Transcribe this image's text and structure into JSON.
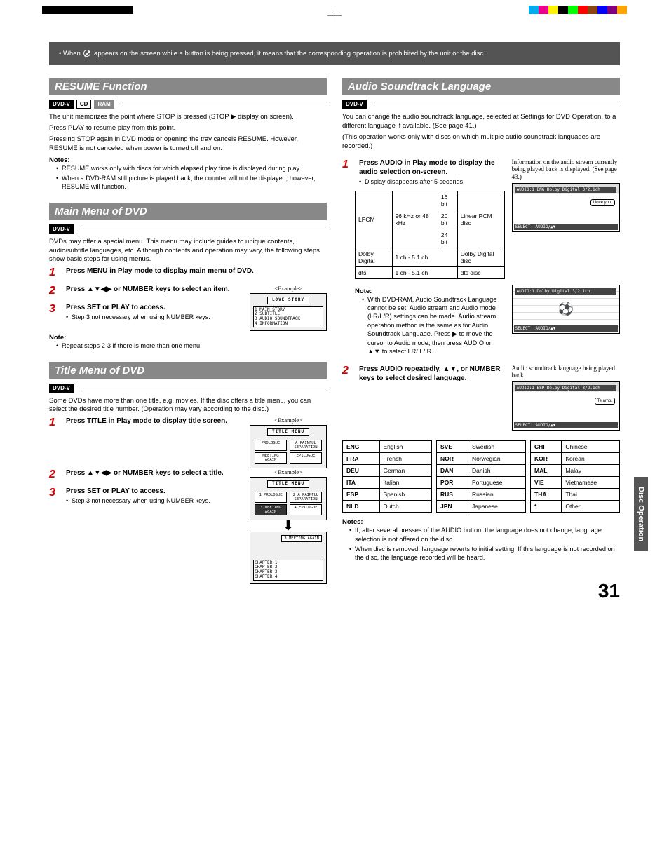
{
  "reg_colors": [
    "#00aeef",
    "#ec008c",
    "#fff200",
    "#000000",
    "#00ff00",
    "#ff0000",
    "#8b4513",
    "#0000ff",
    "#800080",
    "#ffa500"
  ],
  "info_box": {
    "text_before": "• When ",
    "text_after": " appears on the screen while a button is being pressed, it means that the corresponding operation is prohibited by the unit or the disc."
  },
  "resume": {
    "header": "RESUME Function",
    "badges": [
      "DVD-V",
      "CD",
      "RAM"
    ],
    "p1": "The unit memorizes the point where STOP is pressed (STOP ▶ display on screen).",
    "p2": "Press PLAY to resume play from this point.",
    "p3": "Pressing STOP again in DVD mode or opening the tray cancels RESUME. However, RESUME is not canceled when power is turned off and on.",
    "notes_h": "Notes:",
    "notes": [
      "RESUME works only with discs for which elapsed play time is displayed during play.",
      "When a DVD-RAM still picture is played back, the counter will not be displayed; however, RESUME will function."
    ]
  },
  "mainmenu": {
    "header": "Main Menu of DVD",
    "badge": "DVD-V",
    "p1": "DVDs may offer a special menu. This menu may include guides to unique contents, audio/subtitle languages, etc. Although contents and operation may vary, the following steps show basic steps for using menus.",
    "step1": "Press MENU in Play mode to display main menu of DVD.",
    "step2": "Press ▲▼◀▶ or NUMBER keys to select an item.",
    "step3": "Press SET or PLAY to access.",
    "step3_sub": "Step 3 not necessary when using NUMBER keys.",
    "example_label": "<Example>",
    "illus_title": "LOVE STORY",
    "illus_items": [
      "1 MAIN STORY",
      "2 SUBTITLE",
      "3 AUDIO SOUNDTRACK",
      "4 INFORMATION"
    ],
    "note_h": "Note:",
    "note1": "Repeat steps 2-3 if there is more than one menu."
  },
  "titlemenu": {
    "header": "Title Menu of DVD",
    "badge": "DVD-V",
    "p1": "Some DVDs have more than one title, e.g. movies. If the disc offers a title menu, you can select the desired title number. (Operation may vary according to the disc.)",
    "step1": "Press TITLE in Play mode to display title screen.",
    "step2": "Press ▲▼◀▶ or NUMBER keys to select a title.",
    "step3": "Press SET or PLAY to access.",
    "step3_sub": "Step 3 not necessary when using NUMBER keys.",
    "example_label": "<Example>",
    "illus_title": "TITLE MENU",
    "illus_boxes1": [
      "PROLOGUE",
      "A PAINFUL SEPARATION",
      "MEETING AGAIN",
      "EPILOGUE"
    ],
    "illus_boxes2": [
      "1 PROLOGUE",
      "2 A PAINFUL SEPARATION",
      "3 MEETING AGAIN",
      "4 EPILOGUE"
    ],
    "illus3_title": "3 MEETING AGAIN",
    "illus3_items": [
      "CHAPTER 1",
      "CHAPTER 2",
      "CHAPTER 3",
      "CHAPTER 4"
    ]
  },
  "audio": {
    "header": "Audio Soundtrack Language",
    "badge": "DVD-V",
    "p1": "You can change the audio soundtrack language, selected at Settings for DVD Operation, to a different language if available. (See page 41.)",
    "p2": "(This operation works only with discs on which multiple audio soundtrack languages are recorded.)",
    "step1": "Press AUDIO in Play mode to display the audio selection on-screen.",
    "step1_sub": "Display disappears after 5 seconds.",
    "caption1": "Information on the audio stream currently being played back is displayed. (See page 43.)",
    "table1": {
      "r1c1": "LPCM",
      "r1c2": "96 kHz or 48 kHz",
      "r1c3a": "16 bit",
      "r1c3b": "20 bit",
      "r1c3c": "24 bit",
      "r1c4": "Linear PCM disc",
      "r2c1": "Dolby Digital",
      "r2c2": "1 ch - 5.1 ch",
      "r2c3": "Dolby Digital disc",
      "r3c1": "dts",
      "r3c2": "1 ch - 5.1 ch",
      "r3c3": "dts disc"
    },
    "note_h": "Note:",
    "note1": "With DVD-RAM, Audio Soundtrack Language cannot be set. Audio stream and Audio mode (LR/L/R) settings can be made. Audio stream operation method is the same as for Audio Soundtrack Language. Press ▶ to move the cursor to Audio mode, then press AUDIO or ▲▼ to select LR/ L/ R.",
    "step2": "Press AUDIO repeatedly, ▲▼, or NUMBER keys to select desired language.",
    "caption2": "Audio soundtrack language being played back.",
    "osd1": "AUDIO:1 ENG   Dolby Digital 3/2.1ch",
    "osd_bubble1": "I love you.",
    "osd_sel": "SELECT  :AUDIO/▲▼",
    "osd2": "AUDIO:1   Dolby Digital 3/2.1ch",
    "osd3": "AUDIO:1 ESP   Dolby Digital 3/2.1ch",
    "osd_bubble3": "Te amo.",
    "lang": [
      [
        [
          "ENG",
          "English"
        ],
        [
          "FRA",
          "French"
        ],
        [
          "DEU",
          "German"
        ],
        [
          "ITA",
          "Italian"
        ],
        [
          "ESP",
          "Spanish"
        ],
        [
          "NLD",
          "Dutch"
        ]
      ],
      [
        [
          "SVE",
          "Swedish"
        ],
        [
          "NOR",
          "Norwegian"
        ],
        [
          "DAN",
          "Danish"
        ],
        [
          "POR",
          "Portuguese"
        ],
        [
          "RUS",
          "Russian"
        ],
        [
          "JPN",
          "Japanese"
        ]
      ],
      [
        [
          "CHI",
          "Chinese"
        ],
        [
          "KOR",
          "Korean"
        ],
        [
          "MAL",
          "Malay"
        ],
        [
          "VIE",
          "Vietnamese"
        ],
        [
          "THA",
          "Thai"
        ],
        [
          "*",
          "Other"
        ]
      ]
    ],
    "notes_h": "Notes:",
    "notes": [
      "If, after several presses of the AUDIO button, the language does not change, language selection is not offered on the disc.",
      "When disc is removed, language reverts to initial setting. If this language is not recorded on the disc, the language recorded will be heard."
    ]
  },
  "side_tab": "Disc Operation",
  "page_num": "31"
}
